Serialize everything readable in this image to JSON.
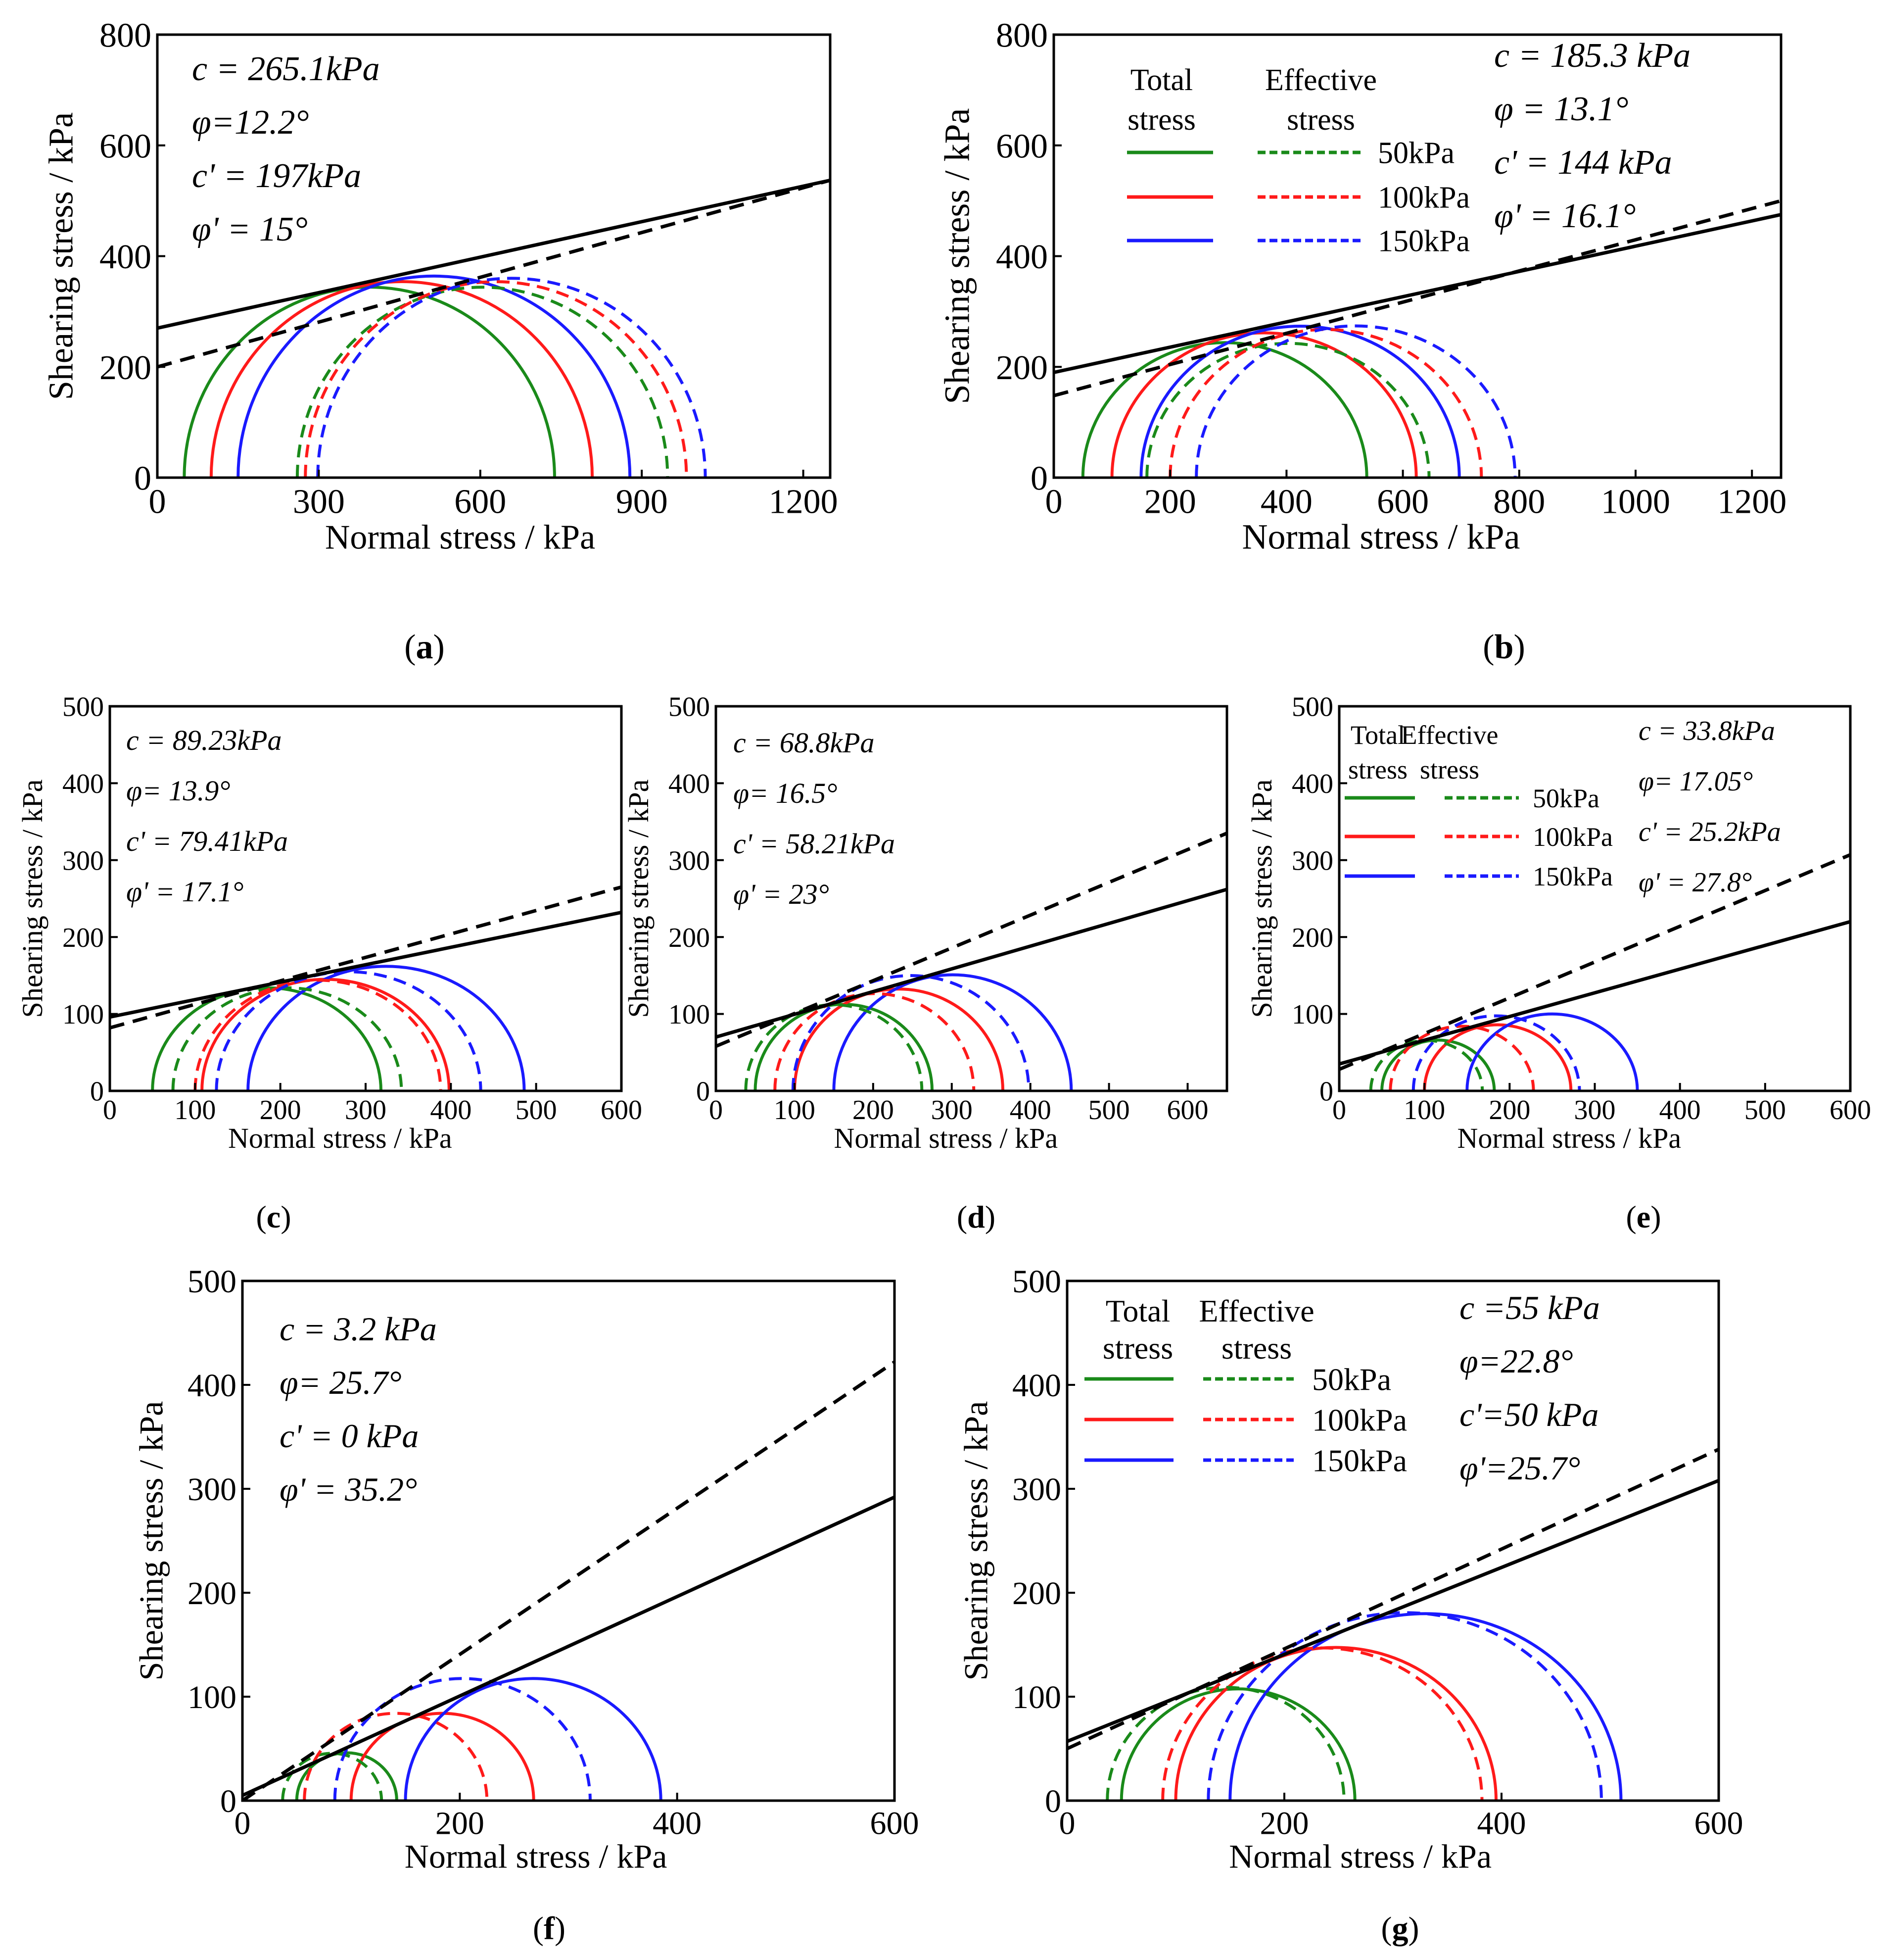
{
  "colors": {
    "total": "#000000",
    "effective": "#000000",
    "p50": "#1a8a1a",
    "p100": "#ff1a1a",
    "p150": "#1a1aff"
  },
  "legend_text": {
    "total_a": "Total",
    "total_b": "stress",
    "effective_a": "Effective",
    "effective_b": "stress",
    "p50": "50kPa",
    "p100": "100kPa",
    "p150": "150kPa"
  },
  "chart_data": [
    {
      "id": "a",
      "type": "line",
      "caption": "(a)",
      "xlabel": "Normal stress / kPa",
      "ylabel": "Shearing stress / kPa",
      "xlim": [
        0,
        1250
      ],
      "ylim": [
        0,
        800
      ],
      "xticks": [
        0,
        300,
        600,
        900,
        1200
      ],
      "yticks": [
        0,
        200,
        400,
        600,
        800
      ],
      "params": [
        "c = 265.1kPa",
        "φ=12.2°",
        "c' = 197kPa",
        "φ' = 15°"
      ],
      "envelopes": [
        {
          "name": "total",
          "intercept": 270,
          "end_value": 537
        },
        {
          "name": "effective",
          "intercept": 200,
          "end_value": 537
        }
      ],
      "circles": [
        {
          "confining": 50,
          "stress": "total",
          "left": 50,
          "right": 738
        },
        {
          "confining": 100,
          "stress": "total",
          "left": 100,
          "right": 808
        },
        {
          "confining": 150,
          "stress": "total",
          "left": 150,
          "right": 878
        },
        {
          "confining": 50,
          "stress": "effective",
          "left": 260,
          "right": 948
        },
        {
          "confining": 100,
          "stress": "effective",
          "left": 275,
          "right": 983
        },
        {
          "confining": 150,
          "stress": "effective",
          "left": 298,
          "right": 1018
        }
      ]
    },
    {
      "id": "b",
      "type": "line",
      "caption": "(b)",
      "xlabel": "Normal stress / kPa",
      "ylabel": "Shearing stress / kPa",
      "xlim": [
        0,
        1250
      ],
      "ylim": [
        0,
        800
      ],
      "xticks": [
        0,
        200,
        400,
        600,
        800,
        1000,
        1200
      ],
      "yticks": [
        0,
        200,
        400,
        600,
        800
      ],
      "params": [
        "c = 185.3 kPa",
        "φ = 13.1°",
        "c' = 144 kPa",
        "φ' = 16.1°"
      ],
      "legend": true,
      "envelopes": [
        {
          "name": "total",
          "intercept": 190,
          "end_value": 475
        },
        {
          "name": "effective",
          "intercept": 148,
          "end_value": 500
        }
      ],
      "circles": [
        {
          "confining": 50,
          "stress": "total",
          "left": 50,
          "right": 538
        },
        {
          "confining": 100,
          "stress": "total",
          "left": 100,
          "right": 623
        },
        {
          "confining": 150,
          "stress": "total",
          "left": 150,
          "right": 697
        },
        {
          "confining": 50,
          "stress": "effective",
          "left": 160,
          "right": 645
        },
        {
          "confining": 100,
          "stress": "effective",
          "left": 200,
          "right": 735
        },
        {
          "confining": 150,
          "stress": "effective",
          "left": 245,
          "right": 793
        }
      ]
    },
    {
      "id": "c",
      "type": "line",
      "caption": "(c)",
      "xlabel": "Normal stress / kPa",
      "ylabel": "Shearing stress / kPa",
      "xlim": [
        0,
        600
      ],
      "ylim": [
        0,
        500
      ],
      "xticks": [
        0,
        100,
        200,
        300,
        400,
        500,
        600
      ],
      "yticks": [
        0,
        100,
        200,
        300,
        400,
        500
      ],
      "params": [
        "c = 89.23kPa",
        "φ= 13.9°",
        "c'  = 79.41kPa",
        "φ' = 17.1°"
      ],
      "envelopes": [
        {
          "name": "total",
          "intercept": 96,
          "end_value": 232
        },
        {
          "name": "effective",
          "intercept": 82,
          "end_value": 265
        }
      ],
      "circles": [
        {
          "confining": 50,
          "stress": "total",
          "left": 50,
          "right": 318
        },
        {
          "confining": 100,
          "stress": "total",
          "left": 108,
          "right": 398
        },
        {
          "confining": 150,
          "stress": "total",
          "left": 162,
          "right": 486
        },
        {
          "confining": 50,
          "stress": "effective",
          "left": 74,
          "right": 342
        },
        {
          "confining": 100,
          "stress": "effective",
          "left": 100,
          "right": 388
        },
        {
          "confining": 150,
          "stress": "effective",
          "left": 125,
          "right": 435
        }
      ]
    },
    {
      "id": "d",
      "type": "line",
      "caption": "(d)",
      "xlabel": "Normal stress / kPa",
      "ylabel": "Shearing stress / kPa",
      "xlim": [
        0,
        650
      ],
      "ylim": [
        0,
        500
      ],
      "xticks": [
        0,
        100,
        200,
        300,
        400,
        500,
        600
      ],
      "yticks": [
        0,
        100,
        200,
        300,
        400,
        500
      ],
      "params": [
        "c = 68.8kPa",
        "φ= 16.5°",
        "c' = 58.21kPa",
        "φ' = 23°"
      ],
      "envelopes": [
        {
          "name": "total",
          "intercept": 70,
          "end_value": 262
        },
        {
          "name": "effective",
          "intercept": 58,
          "end_value": 335
        }
      ],
      "circles": [
        {
          "confining": 50,
          "stress": "total",
          "left": 50,
          "right": 275
        },
        {
          "confining": 100,
          "stress": "total",
          "left": 100,
          "right": 365
        },
        {
          "confining": 150,
          "stress": "total",
          "left": 150,
          "right": 452
        },
        {
          "confining": 50,
          "stress": "effective",
          "left": 38,
          "right": 262
        },
        {
          "confining": 100,
          "stress": "effective",
          "left": 75,
          "right": 328
        },
        {
          "confining": 150,
          "stress": "effective",
          "left": 98,
          "right": 398
        }
      ]
    },
    {
      "id": "e",
      "type": "line",
      "caption": "(e)",
      "xlabel": "Normal stress / kPa",
      "ylabel": "Shearing stress / kPa",
      "xlim": [
        0,
        600
      ],
      "ylim": [
        0,
        500
      ],
      "xticks": [
        0,
        100,
        200,
        300,
        400,
        500,
        600
      ],
      "yticks": [
        0,
        100,
        200,
        300,
        400,
        500
      ],
      "params": [
        "c = 33.8kPa",
        "φ= 17.05°",
        "c' = 25.2kPa",
        "φ' = 27.8°"
      ],
      "legend": true,
      "envelopes": [
        {
          "name": "total",
          "intercept": 35,
          "end_value": 220
        },
        {
          "name": "effective",
          "intercept": 28,
          "end_value": 307
        }
      ],
      "circles": [
        {
          "confining": 50,
          "stress": "total",
          "left": 50,
          "right": 182
        },
        {
          "confining": 100,
          "stress": "total",
          "left": 100,
          "right": 272
        },
        {
          "confining": 150,
          "stress": "total",
          "left": 150,
          "right": 350
        },
        {
          "confining": 50,
          "stress": "effective",
          "left": 37,
          "right": 168
        },
        {
          "confining": 100,
          "stress": "effective",
          "left": 60,
          "right": 228
        },
        {
          "confining": 150,
          "stress": "effective",
          "left": 87,
          "right": 282
        }
      ]
    },
    {
      "id": "f",
      "type": "line",
      "caption": "(f)",
      "xlabel": "Normal stress / kPa",
      "ylabel": "Shearing stress / kPa",
      "xlim": [
        0,
        600
      ],
      "ylim": [
        0,
        500
      ],
      "xticks": [
        0,
        200,
        400,
        600
      ],
      "yticks": [
        0,
        100,
        200,
        300,
        400,
        500
      ],
      "params": [
        "c = 3.2 kPa",
        "φ= 25.7°",
        "c' = 0 kPa",
        "φ' = 35.2°"
      ],
      "envelopes": [
        {
          "name": "total",
          "intercept": 5,
          "end_value": 292
        },
        {
          "name": "effective",
          "intercept": 0,
          "end_value": 422
        }
      ],
      "circles": [
        {
          "confining": 50,
          "stress": "total",
          "left": 50,
          "right": 142
        },
        {
          "confining": 100,
          "stress": "total",
          "left": 100,
          "right": 268
        },
        {
          "confining": 150,
          "stress": "total",
          "left": 150,
          "right": 385
        },
        {
          "confining": 50,
          "stress": "effective",
          "left": 37,
          "right": 128
        },
        {
          "confining": 100,
          "stress": "effective",
          "left": 57,
          "right": 225
        },
        {
          "confining": 150,
          "stress": "effective",
          "left": 85,
          "right": 320
        }
      ]
    },
    {
      "id": "g",
      "type": "line",
      "caption": "(g)",
      "xlabel": "Normal stress / kPa",
      "ylabel": "Shearing stress / kPa",
      "xlim": [
        0,
        600
      ],
      "ylim": [
        0,
        500
      ],
      "xticks": [
        0,
        200,
        400,
        600
      ],
      "yticks": [
        0,
        100,
        200,
        300,
        400,
        500
      ],
      "params": [
        "c =55 kPa",
        "φ=22.8°",
        "c'=50 kPa",
        "φ'=25.7°"
      ],
      "legend": true,
      "envelopes": [
        {
          "name": "total",
          "intercept": 57,
          "end_value": 308
        },
        {
          "name": "effective",
          "intercept": 50,
          "end_value": 338
        }
      ],
      "circles": [
        {
          "confining": 50,
          "stress": "total",
          "left": 50,
          "right": 265
        },
        {
          "confining": 100,
          "stress": "total",
          "left": 100,
          "right": 395
        },
        {
          "confining": 150,
          "stress": "total",
          "left": 150,
          "right": 510
        },
        {
          "confining": 50,
          "stress": "effective",
          "left": 37,
          "right": 255
        },
        {
          "confining": 100,
          "stress": "effective",
          "left": 88,
          "right": 382
        },
        {
          "confining": 150,
          "stress": "effective",
          "left": 130,
          "right": 492
        }
      ]
    }
  ]
}
